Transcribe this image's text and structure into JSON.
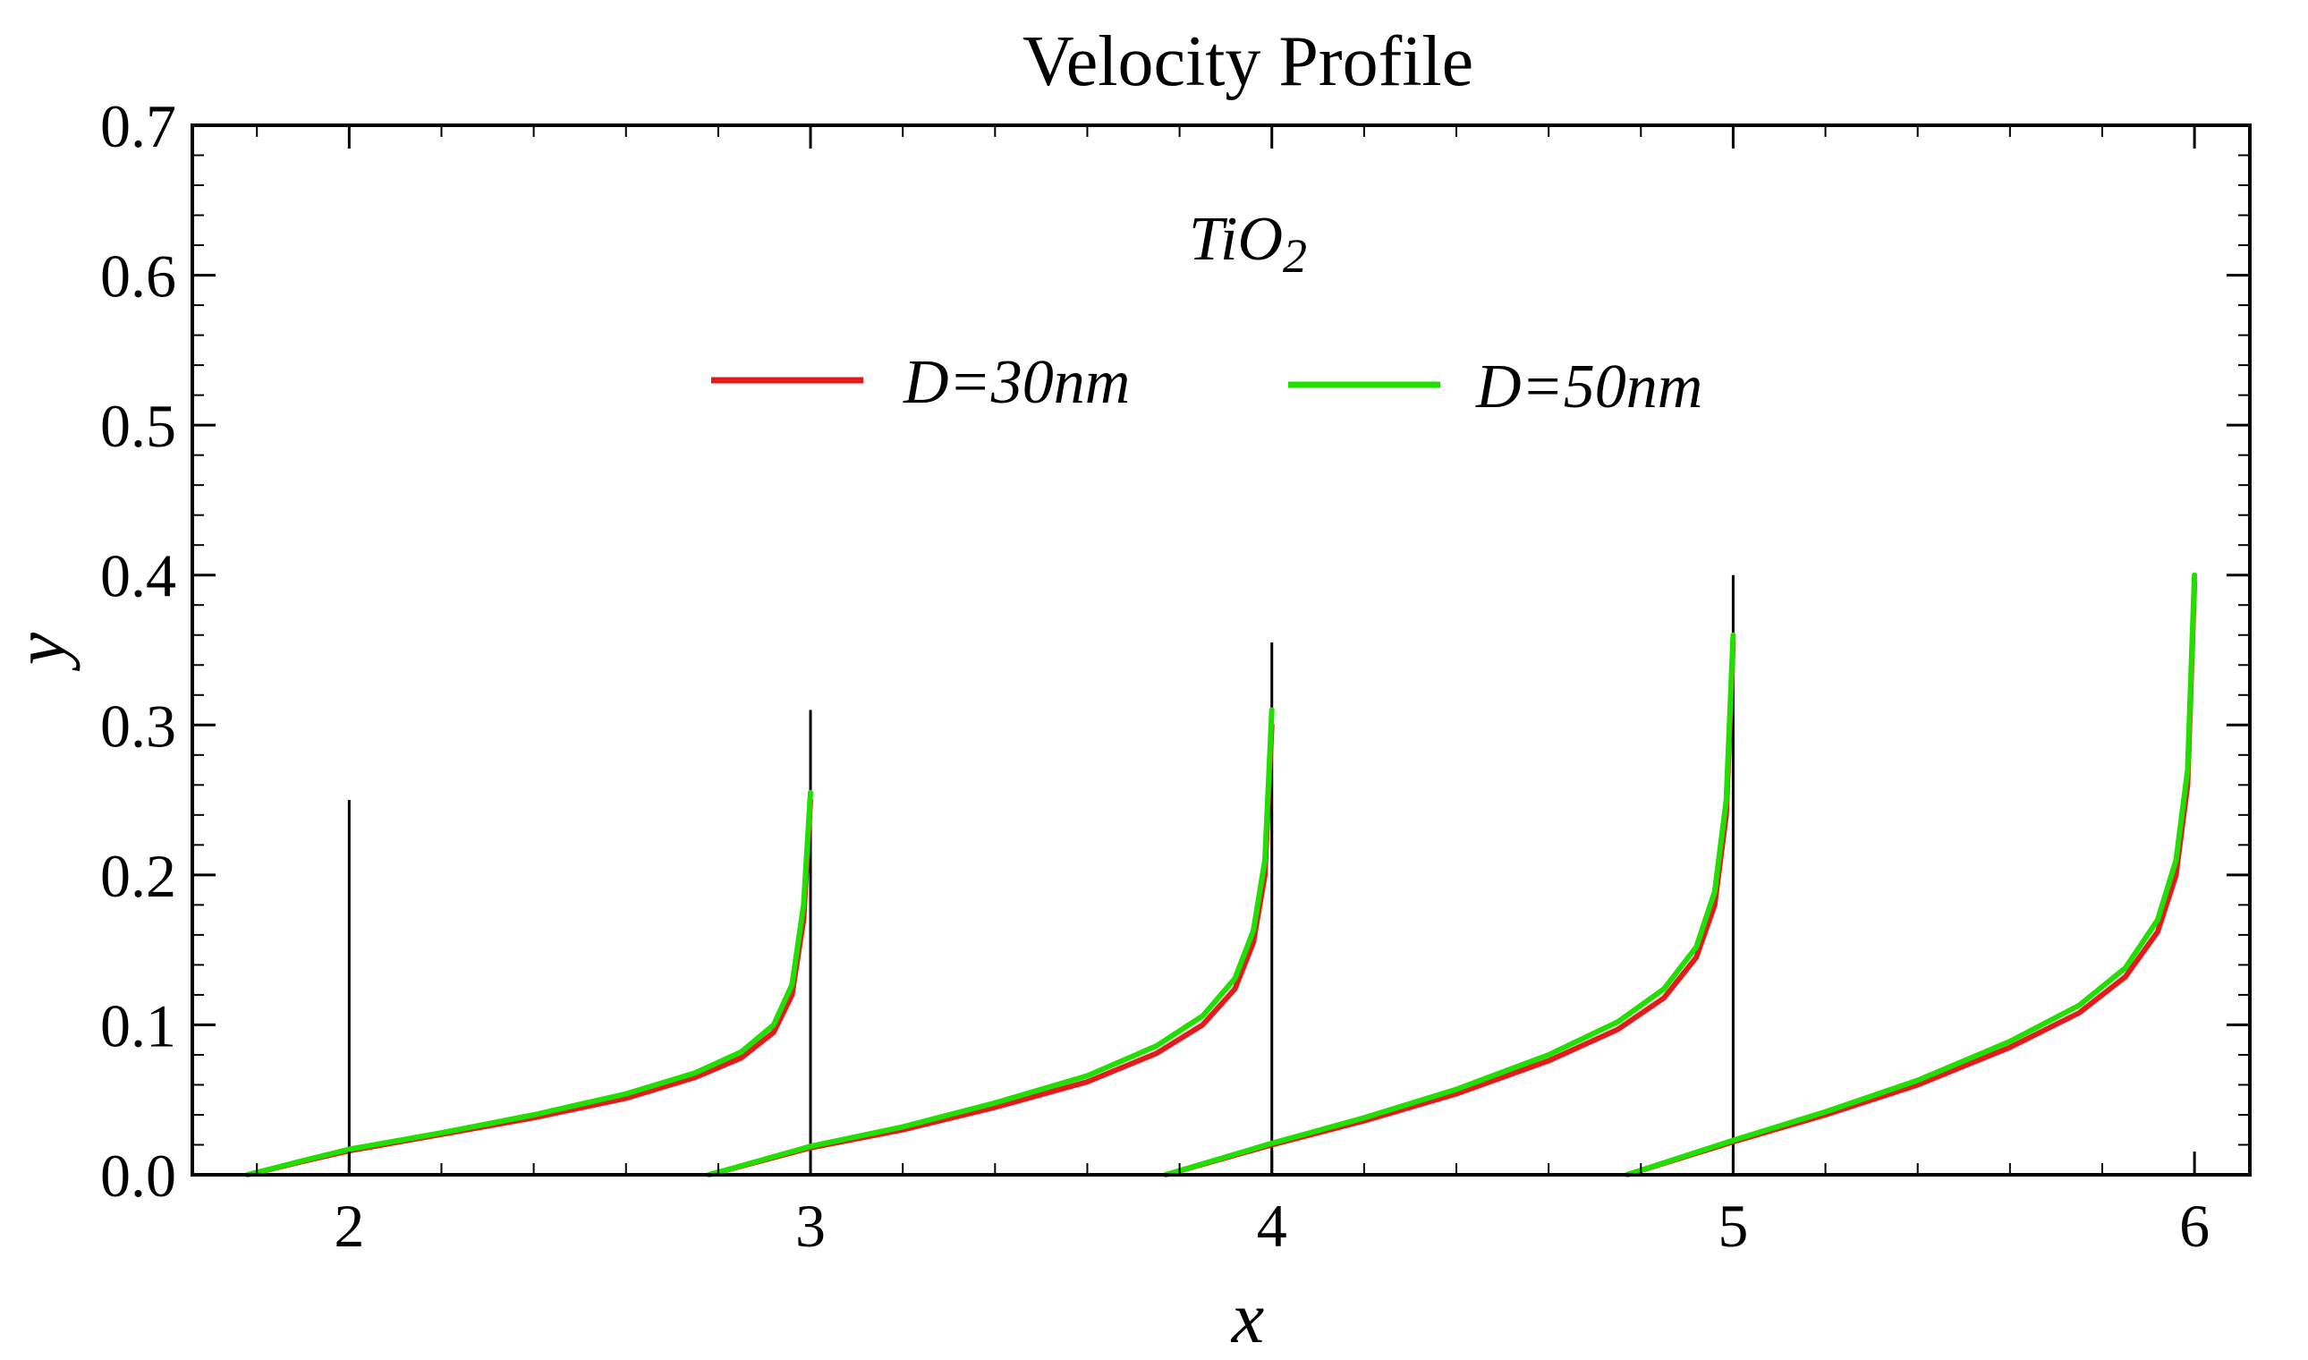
{
  "chart_data": {
    "type": "line",
    "title": "Velocity Profile",
    "xlabel": "x",
    "ylabel": "y",
    "annotation": {
      "base": "TiO",
      "subscript": "2"
    },
    "xlim": [
      1.66,
      6.12
    ],
    "ylim": [
      0,
      0.7
    ],
    "xticks": [
      {
        "value": 2,
        "label": "2"
      },
      {
        "value": 3,
        "label": "3"
      },
      {
        "value": 4,
        "label": "4"
      },
      {
        "value": 5,
        "label": "5"
      },
      {
        "value": 6,
        "label": "6"
      }
    ],
    "yticks": [
      {
        "value": 0.0,
        "label": "0.0"
      },
      {
        "value": 0.1,
        "label": "0.1"
      },
      {
        "value": 0.2,
        "label": "0.2"
      },
      {
        "value": 0.3,
        "label": "0.3"
      },
      {
        "value": 0.4,
        "label": "0.4"
      },
      {
        "value": 0.5,
        "label": "0.5"
      },
      {
        "value": 0.6,
        "label": "0.6"
      },
      {
        "value": 0.7,
        "label": "0.7"
      }
    ],
    "vertical_markers": [
      {
        "x": 2,
        "y_top": 0.25
      },
      {
        "x": 3,
        "y_top": 0.31
      },
      {
        "x": 4,
        "y_top": 0.355
      },
      {
        "x": 5,
        "y_top": 0.4
      }
    ],
    "legend_position": "top-center",
    "series": [
      {
        "name": "D=30nm",
        "label": "D=30nm",
        "color": "#e41a1c",
        "segments": [
          {
            "x": [
              1.78,
              1.9,
              2.0,
              2.2,
              2.4,
              2.6,
              2.75,
              2.85,
              2.92,
              2.96,
              2.985,
              3.0
            ],
            "y": [
              0.0,
              0.009,
              0.016,
              0.027,
              0.038,
              0.051,
              0.065,
              0.078,
              0.095,
              0.12,
              0.17,
              0.25
            ]
          },
          {
            "x": [
              2.78,
              3.0,
              3.2,
              3.4,
              3.6,
              3.75,
              3.85,
              3.92,
              3.96,
              3.985,
              4.0
            ],
            "y": [
              0.0,
              0.018,
              0.03,
              0.045,
              0.062,
              0.081,
              0.1,
              0.124,
              0.155,
              0.2,
              0.3
            ]
          },
          {
            "x": [
              3.77,
              4.0,
              4.2,
              4.4,
              4.6,
              4.75,
              4.85,
              4.92,
              4.96,
              4.985,
              5.0
            ],
            "y": [
              0.0,
              0.02,
              0.036,
              0.054,
              0.076,
              0.097,
              0.118,
              0.145,
              0.18,
              0.24,
              0.355
            ]
          },
          {
            "x": [
              4.77,
              5.0,
              5.2,
              5.4,
              5.6,
              5.75,
              5.85,
              5.92,
              5.96,
              5.985,
              6.0
            ],
            "y": [
              0.0,
              0.022,
              0.04,
              0.06,
              0.085,
              0.108,
              0.132,
              0.162,
              0.2,
              0.26,
              0.395
            ]
          }
        ]
      },
      {
        "name": "D=50nm",
        "label": "D=50nm",
        "color": "#21e000",
        "segments": [
          {
            "x": [
              1.78,
              1.9,
              2.0,
              2.2,
              2.4,
              2.6,
              2.75,
              2.85,
              2.92,
              2.96,
              2.985,
              3.0
            ],
            "y": [
              0.0,
              0.0095,
              0.017,
              0.028,
              0.04,
              0.054,
              0.068,
              0.082,
              0.1,
              0.127,
              0.18,
              0.255
            ]
          },
          {
            "x": [
              2.78,
              3.0,
              3.2,
              3.4,
              3.6,
              3.75,
              3.85,
              3.92,
              3.96,
              3.985,
              4.0
            ],
            "y": [
              0.0,
              0.019,
              0.032,
              0.048,
              0.066,
              0.086,
              0.106,
              0.131,
              0.163,
              0.21,
              0.31
            ]
          },
          {
            "x": [
              3.77,
              4.0,
              4.2,
              4.4,
              4.6,
              4.75,
              4.85,
              4.92,
              4.96,
              4.985,
              5.0
            ],
            "y": [
              0.0,
              0.021,
              0.038,
              0.057,
              0.08,
              0.102,
              0.124,
              0.152,
              0.189,
              0.25,
              0.36
            ]
          },
          {
            "x": [
              4.77,
              5.0,
              5.2,
              5.4,
              5.6,
              5.75,
              5.85,
              5.92,
              5.96,
              5.985,
              6.0
            ],
            "y": [
              0.0,
              0.023,
              0.042,
              0.063,
              0.089,
              0.113,
              0.138,
              0.17,
              0.21,
              0.27,
              0.4
            ]
          }
        ]
      }
    ]
  }
}
